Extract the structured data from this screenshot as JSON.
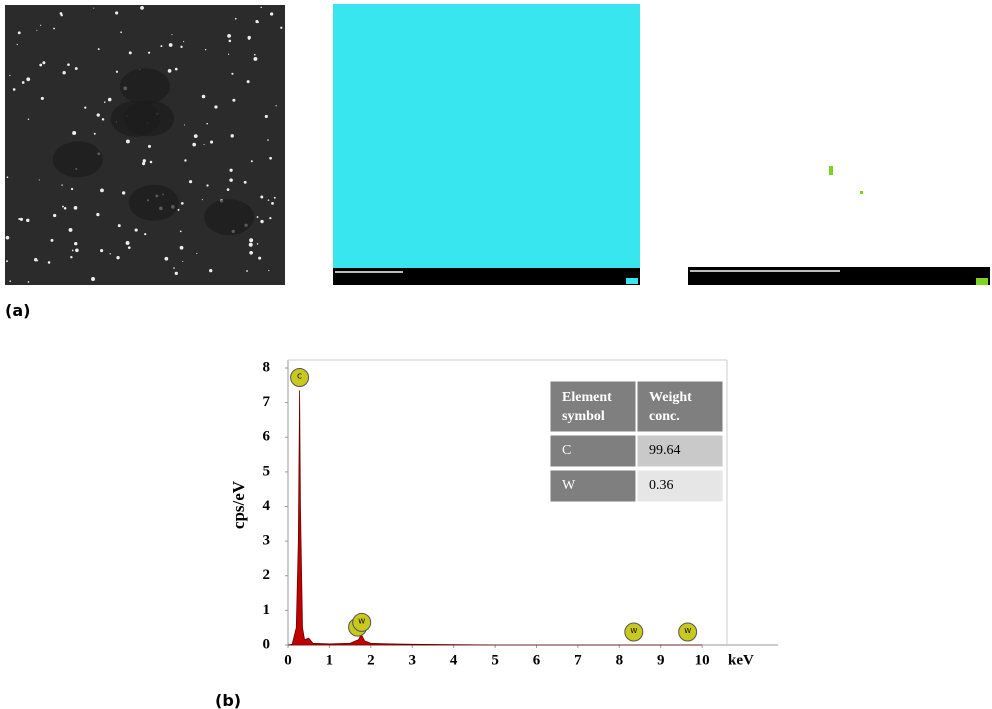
{
  "panel_labels": [
    "(a)",
    "(b)"
  ],
  "chart_data": {
    "type": "area",
    "x": [
      0,
      0.1,
      0.2,
      0.25,
      0.28,
      0.3,
      0.35,
      0.4,
      0.5,
      0.6,
      1.0,
      1.5,
      1.7,
      1.77,
      1.85,
      2.0,
      2.5,
      3,
      4,
      5,
      10
    ],
    "values": [
      0,
      0.02,
      0.5,
      3,
      7.35,
      4,
      0.5,
      0.15,
      0.2,
      0.05,
      0.03,
      0.05,
      0.15,
      0.3,
      0.12,
      0.05,
      0.03,
      0.02,
      0.01,
      0,
      0
    ],
    "color": "#c00000",
    "xlabel": "keV",
    "ylabel": "cps/eV",
    "xlim": [
      0,
      10.6
    ],
    "ylim": [
      0,
      8
    ],
    "xticks": [
      0,
      1,
      2,
      3,
      4,
      5,
      6,
      7,
      8,
      9,
      10
    ],
    "yticks": [
      0,
      1,
      2,
      3,
      4,
      5,
      6,
      7,
      8
    ],
    "peak_markers": [
      {
        "label": "C",
        "x": 0.28
      },
      {
        "label": "W",
        "x": 1.68
      },
      {
        "label": "W",
        "x": 1.78
      },
      {
        "label": "W",
        "x": 8.35
      },
      {
        "label": "W",
        "x": 9.65
      }
    ]
  },
  "table": {
    "header": [
      "Element symbol",
      "Weight conc."
    ],
    "rows": [
      [
        "C",
        99.64
      ],
      [
        "W",
        0.36
      ]
    ]
  }
}
